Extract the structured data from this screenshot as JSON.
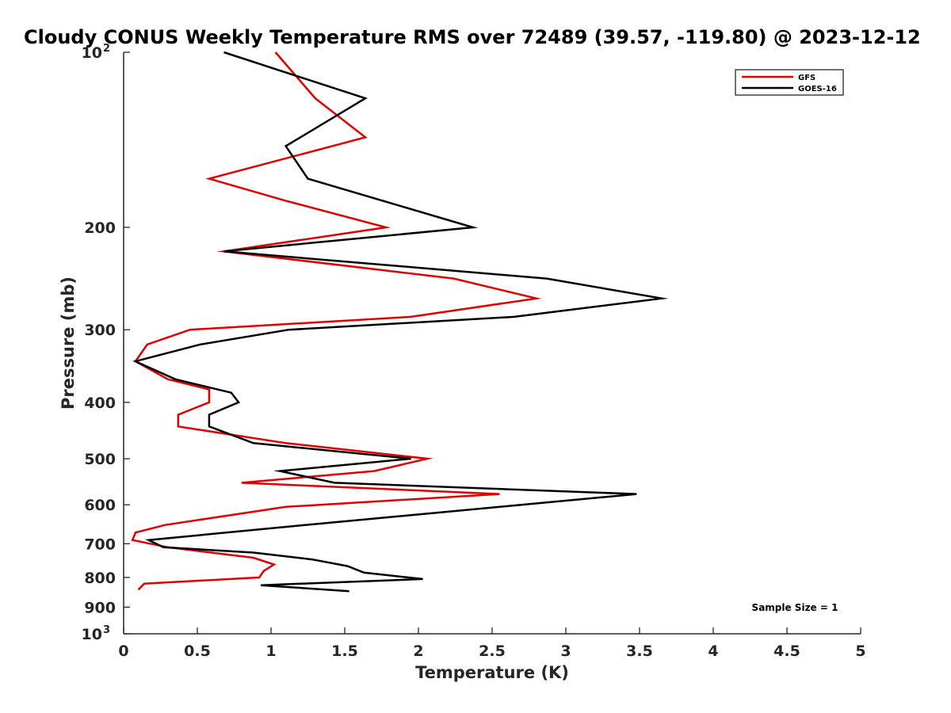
{
  "chart_data": {
    "type": "line",
    "title": "Cloudy CONUS Weekly Temperature RMS over 72489 (39.57, -119.80) @ 2023-12-12",
    "xlabel": "Temperature (K)",
    "ylabel": "Pressure (mb)",
    "xlim": [
      0,
      5
    ],
    "ylim": [
      100,
      1000
    ],
    "y_scale": "log",
    "y_reversed": true,
    "grid": false,
    "legend_position": "top-right",
    "x_ticks": [
      {
        "value": 0,
        "label": "0"
      },
      {
        "value": 0.5,
        "label": "0.5"
      },
      {
        "value": 1,
        "label": "1"
      },
      {
        "value": 1.5,
        "label": "1.5"
      },
      {
        "value": 2,
        "label": "2"
      },
      {
        "value": 2.5,
        "label": "2.5"
      },
      {
        "value": 3,
        "label": "3"
      },
      {
        "value": 3.5,
        "label": "3.5"
      },
      {
        "value": 4,
        "label": "4"
      },
      {
        "value": 4.5,
        "label": "4.5"
      },
      {
        "value": 5,
        "label": "5"
      }
    ],
    "y_ticks": [
      {
        "value": 100,
        "base": "10",
        "exp": "2"
      },
      {
        "value": 200,
        "label": "200"
      },
      {
        "value": 300,
        "label": "300"
      },
      {
        "value": 400,
        "label": "400"
      },
      {
        "value": 500,
        "label": "500"
      },
      {
        "value": 600,
        "label": "600"
      },
      {
        "value": 700,
        "label": "700"
      },
      {
        "value": 800,
        "label": "800"
      },
      {
        "value": 900,
        "label": "900"
      },
      {
        "value": 1000,
        "base": "10",
        "exp": "3"
      }
    ],
    "series": [
      {
        "name": "GFS",
        "color": "#e00000",
        "points": [
          [
            1.03,
            100
          ],
          [
            1.3,
            120
          ],
          [
            1.64,
            140
          ],
          [
            0.58,
            165
          ],
          [
            1.1,
            180
          ],
          [
            1.78,
            200
          ],
          [
            0.68,
            220
          ],
          [
            2.24,
            245
          ],
          [
            2.8,
            265
          ],
          [
            1.95,
            285
          ],
          [
            0.45,
            300
          ],
          [
            0.16,
            318
          ],
          [
            0.08,
            340
          ],
          [
            0.3,
            365
          ],
          [
            0.58,
            380
          ],
          [
            0.58,
            400
          ],
          [
            0.37,
            420
          ],
          [
            0.37,
            440
          ],
          [
            1.1,
            470
          ],
          [
            2.06,
            500
          ],
          [
            1.7,
            525
          ],
          [
            0.8,
            550
          ],
          [
            2.55,
            575
          ],
          [
            1.1,
            605
          ],
          [
            0.28,
            650
          ],
          [
            0.08,
            670
          ],
          [
            0.06,
            690
          ],
          [
            0.3,
            710
          ],
          [
            0.88,
            740
          ],
          [
            1.02,
            760
          ],
          [
            0.95,
            780
          ],
          [
            0.92,
            800
          ],
          [
            0.14,
            820
          ],
          [
            0.1,
            840
          ]
        ]
      },
      {
        "name": "GOES-16",
        "color": "#000000",
        "points": [
          [
            0.68,
            100
          ],
          [
            1.64,
            120
          ],
          [
            1.1,
            145
          ],
          [
            1.25,
            165
          ],
          [
            2.37,
            200
          ],
          [
            0.68,
            220
          ],
          [
            2.87,
            245
          ],
          [
            3.65,
            265
          ],
          [
            2.65,
            285
          ],
          [
            1.12,
            300
          ],
          [
            0.52,
            318
          ],
          [
            0.08,
            340
          ],
          [
            0.35,
            365
          ],
          [
            0.73,
            385
          ],
          [
            0.78,
            400
          ],
          [
            0.58,
            420
          ],
          [
            0.58,
            440
          ],
          [
            0.88,
            470
          ],
          [
            1.95,
            500
          ],
          [
            1.06,
            525
          ],
          [
            1.43,
            550
          ],
          [
            3.48,
            575
          ],
          [
            1.95,
            625
          ],
          [
            1.23,
            650
          ],
          [
            0.17,
            690
          ],
          [
            0.27,
            710
          ],
          [
            0.88,
            725
          ],
          [
            1.28,
            745
          ],
          [
            1.52,
            765
          ],
          [
            1.63,
            785
          ],
          [
            2.03,
            805
          ],
          [
            0.93,
            825
          ],
          [
            1.53,
            845
          ]
        ]
      }
    ],
    "annotation": "Sample Size = 1"
  }
}
